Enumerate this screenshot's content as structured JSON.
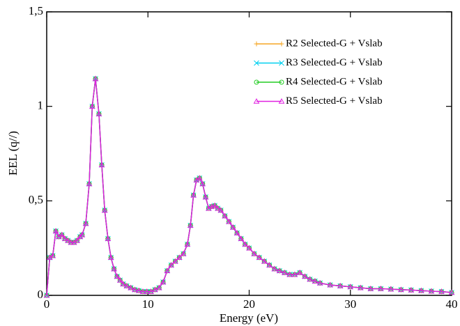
{
  "chart_data": {
    "type": "line",
    "xlabel": "Energy (eV)",
    "ylabel": "EEL (q//)",
    "x": [
      0,
      0.3,
      0.6,
      0.9,
      1.2,
      1.5,
      1.8,
      2.1,
      2.4,
      2.7,
      3.0,
      3.3,
      3.5,
      3.86,
      4.2,
      4.5,
      4.82,
      5.16,
      5.44,
      5.73,
      6.05,
      6.35,
      6.65,
      6.95,
      7.25,
      7.55,
      7.9,
      8.3,
      8.7,
      9.1,
      9.5,
      9.9,
      10.3,
      10.7,
      11.1,
      11.5,
      11.9,
      12.3,
      12.7,
      13.1,
      13.5,
      13.9,
      14.2,
      14.5,
      14.8,
      15.1,
      15.4,
      15.7,
      16.0,
      16.3,
      16.6,
      16.9,
      17.2,
      17.6,
      18.0,
      18.4,
      18.8,
      19.2,
      19.6,
      20.0,
      20.5,
      21.0,
      21.5,
      22.0,
      22.5,
      23.0,
      23.5,
      24.0,
      24.5,
      25.0,
      25.5,
      26.0,
      26.5,
      27,
      28,
      29,
      30,
      31,
      32,
      33,
      34,
      35,
      36,
      37,
      38,
      39,
      40
    ],
    "series": [
      {
        "name": "R2 Selected-G + Vslab",
        "color": "#f5a623",
        "marker": "plus",
        "values": [
          0,
          0.2,
          0.21,
          0.34,
          0.31,
          0.32,
          0.3,
          0.29,
          0.28,
          0.28,
          0.29,
          0.31,
          0.32,
          0.38,
          0.59,
          1.0,
          1.146,
          0.96,
          0.69,
          0.45,
          0.3,
          0.2,
          0.14,
          0.1,
          0.08,
          0.06,
          0.05,
          0.04,
          0.03,
          0.025,
          0.02,
          0.02,
          0.02,
          0.03,
          0.04,
          0.07,
          0.13,
          0.16,
          0.18,
          0.2,
          0.22,
          0.27,
          0.37,
          0.53,
          0.61,
          0.62,
          0.59,
          0.52,
          0.46,
          0.47,
          0.475,
          0.46,
          0.45,
          0.42,
          0.39,
          0.36,
          0.33,
          0.3,
          0.27,
          0.25,
          0.22,
          0.2,
          0.18,
          0.16,
          0.14,
          0.13,
          0.12,
          0.11,
          0.11,
          0.12,
          0.1,
          0.085,
          0.075,
          0.065,
          0.055,
          0.05,
          0.045,
          0.04,
          0.035,
          0.035,
          0.033,
          0.03,
          0.028,
          0.025,
          0.022,
          0.02,
          0.015
        ]
      },
      {
        "name": "R3 Selected-G + Vslab",
        "color": "#00d0f0",
        "marker": "x",
        "values": [
          0,
          0.2,
          0.21,
          0.34,
          0.31,
          0.32,
          0.3,
          0.29,
          0.28,
          0.28,
          0.29,
          0.31,
          0.32,
          0.38,
          0.59,
          1.0,
          1.146,
          0.96,
          0.69,
          0.45,
          0.3,
          0.2,
          0.14,
          0.1,
          0.08,
          0.06,
          0.05,
          0.04,
          0.03,
          0.025,
          0.02,
          0.02,
          0.02,
          0.03,
          0.04,
          0.07,
          0.13,
          0.16,
          0.18,
          0.2,
          0.22,
          0.27,
          0.37,
          0.53,
          0.61,
          0.62,
          0.59,
          0.52,
          0.46,
          0.47,
          0.475,
          0.46,
          0.45,
          0.42,
          0.39,
          0.36,
          0.33,
          0.3,
          0.27,
          0.25,
          0.22,
          0.2,
          0.18,
          0.16,
          0.14,
          0.13,
          0.12,
          0.11,
          0.11,
          0.12,
          0.1,
          0.085,
          0.075,
          0.065,
          0.055,
          0.05,
          0.045,
          0.04,
          0.035,
          0.035,
          0.033,
          0.03,
          0.028,
          0.025,
          0.022,
          0.02,
          0.015
        ]
      },
      {
        "name": "R4 Selected-G + Vslab",
        "color": "#22cc22",
        "marker": "circle",
        "values": [
          0,
          0.2,
          0.21,
          0.34,
          0.31,
          0.32,
          0.3,
          0.29,
          0.28,
          0.28,
          0.29,
          0.31,
          0.32,
          0.38,
          0.59,
          1.0,
          1.146,
          0.96,
          0.69,
          0.45,
          0.3,
          0.2,
          0.14,
          0.1,
          0.08,
          0.06,
          0.05,
          0.04,
          0.03,
          0.025,
          0.02,
          0.02,
          0.02,
          0.03,
          0.04,
          0.07,
          0.13,
          0.16,
          0.18,
          0.2,
          0.22,
          0.27,
          0.37,
          0.53,
          0.61,
          0.62,
          0.59,
          0.52,
          0.46,
          0.47,
          0.475,
          0.46,
          0.45,
          0.42,
          0.39,
          0.36,
          0.33,
          0.3,
          0.27,
          0.25,
          0.22,
          0.2,
          0.18,
          0.16,
          0.14,
          0.13,
          0.12,
          0.11,
          0.11,
          0.12,
          0.1,
          0.085,
          0.075,
          0.065,
          0.055,
          0.05,
          0.045,
          0.04,
          0.035,
          0.035,
          0.033,
          0.03,
          0.028,
          0.025,
          0.022,
          0.02,
          0.015
        ]
      },
      {
        "name": "R5 Selected-G + Vslab",
        "color": "#e020e0",
        "marker": "triangle",
        "values": [
          0,
          0.2,
          0.21,
          0.34,
          0.31,
          0.32,
          0.3,
          0.29,
          0.28,
          0.28,
          0.29,
          0.31,
          0.32,
          0.38,
          0.59,
          1.0,
          1.146,
          0.96,
          0.69,
          0.45,
          0.3,
          0.2,
          0.14,
          0.1,
          0.08,
          0.06,
          0.05,
          0.04,
          0.03,
          0.025,
          0.02,
          0.02,
          0.02,
          0.03,
          0.04,
          0.07,
          0.13,
          0.16,
          0.18,
          0.2,
          0.22,
          0.27,
          0.37,
          0.53,
          0.61,
          0.62,
          0.59,
          0.52,
          0.46,
          0.47,
          0.475,
          0.46,
          0.45,
          0.42,
          0.39,
          0.36,
          0.33,
          0.3,
          0.27,
          0.25,
          0.22,
          0.2,
          0.18,
          0.16,
          0.14,
          0.13,
          0.12,
          0.11,
          0.11,
          0.12,
          0.1,
          0.085,
          0.075,
          0.065,
          0.055,
          0.05,
          0.045,
          0.04,
          0.035,
          0.035,
          0.033,
          0.03,
          0.028,
          0.025,
          0.022,
          0.02,
          0.015
        ]
      }
    ],
    "xlim": [
      0,
      40
    ],
    "xticks": [
      0,
      10,
      20,
      30,
      40
    ],
    "ylim": [
      0,
      1.5
    ],
    "yticks": [
      0,
      {
        "value": 0.5,
        "label": "0,5"
      },
      1,
      {
        "value": 1.5,
        "label": "1,5"
      }
    ],
    "grid": false,
    "legend": "upper right"
  }
}
